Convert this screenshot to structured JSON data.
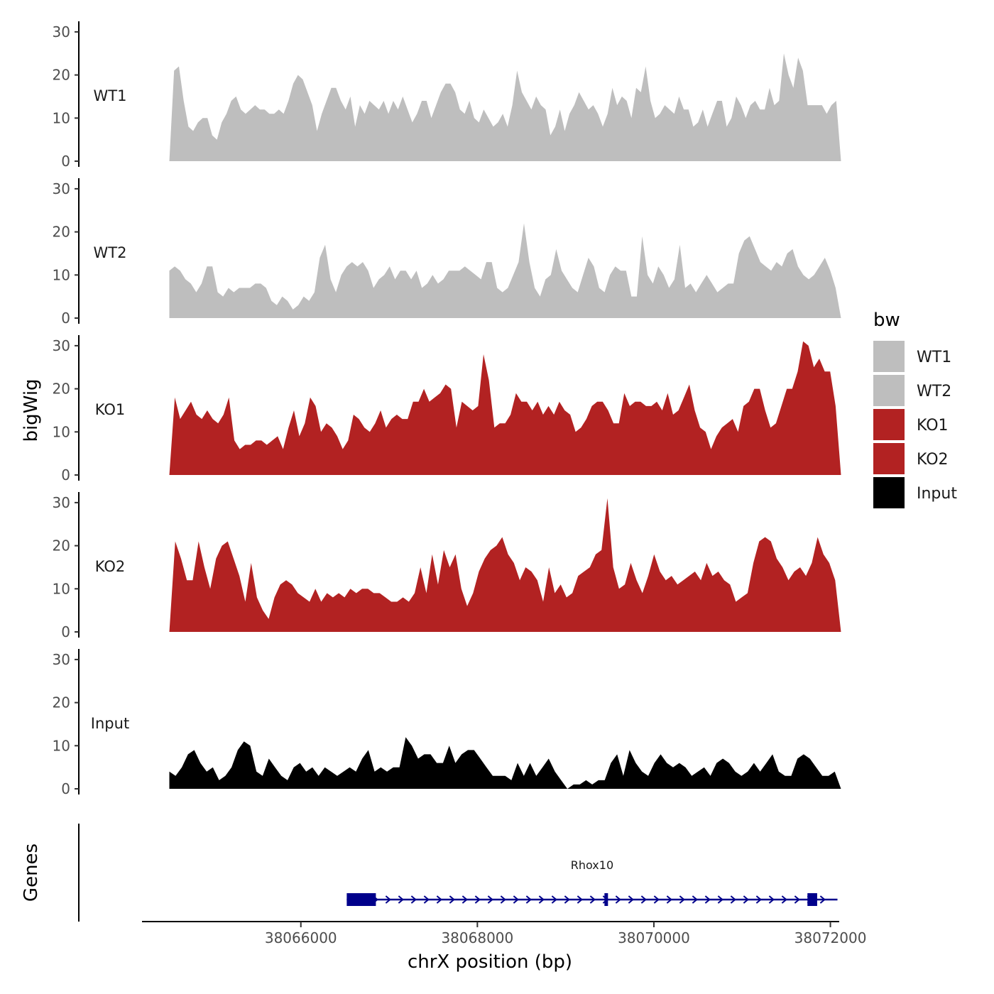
{
  "chart_data": {
    "type": "area",
    "y_axis_title": "bigWig",
    "genes_axis_title": "Genes",
    "x_axis_title": "chrX position (bp)",
    "xlim": [
      38064200,
      38072100
    ],
    "data_xrange": [
      38064510,
      38072120
    ],
    "x_ticks": [
      {
        "value": 38066000,
        "label": "38066000"
      },
      {
        "value": 38068000,
        "label": "38068000"
      },
      {
        "value": 38070000,
        "label": "38070000"
      },
      {
        "value": 38072000,
        "label": "38072000"
      }
    ],
    "ylim": [
      0,
      31
    ],
    "y_ticks": [
      {
        "value": 0,
        "label": "0"
      },
      {
        "value": 10,
        "label": "10"
      },
      {
        "value": 20,
        "label": "20"
      },
      {
        "value": 30,
        "label": "30"
      }
    ],
    "legend": {
      "title": "bw",
      "entries": [
        {
          "label": "WT1",
          "color": "#bebebe"
        },
        {
          "label": "WT2",
          "color": "#bebebe"
        },
        {
          "label": "KO1",
          "color": "#b22222"
        },
        {
          "label": "KO2",
          "color": "#b22222"
        },
        {
          "label": "Input",
          "color": "#000000"
        }
      ]
    },
    "series": [
      {
        "name": "WT1",
        "color": "#bebebe",
        "values": [
          0,
          21,
          22,
          14,
          8,
          7,
          9,
          10,
          10,
          6,
          5,
          9,
          11,
          14,
          15,
          12,
          11,
          12,
          13,
          12,
          12,
          11,
          11,
          12,
          11,
          14,
          18,
          20,
          19,
          16,
          13,
          7,
          11,
          14,
          17,
          17,
          14,
          12,
          15,
          8,
          13,
          11,
          14,
          13,
          12,
          14,
          11,
          14,
          12,
          15,
          12,
          9,
          11,
          14,
          14,
          10,
          13,
          16,
          18,
          18,
          16,
          12,
          11,
          14,
          10,
          9,
          12,
          10,
          8,
          9,
          11,
          8,
          13,
          21,
          16,
          14,
          12,
          15,
          13,
          12,
          6,
          8,
          12,
          7,
          11,
          13,
          16,
          14,
          12,
          13,
          11,
          8,
          11,
          17,
          13,
          15,
          14,
          10,
          17,
          16,
          22,
          14,
          10,
          11,
          13,
          12,
          11,
          15,
          12,
          12,
          8,
          9,
          12,
          8,
          11,
          14,
          14,
          8,
          10,
          15,
          13,
          10,
          13,
          14,
          12,
          12,
          17,
          13,
          14,
          25,
          20,
          17,
          24,
          21,
          13,
          13,
          13,
          13,
          11,
          13,
          14,
          0
        ]
      },
      {
        "name": "WT2",
        "color": "#bebebe",
        "values": [
          11,
          12,
          11,
          9,
          8,
          6,
          8,
          12,
          12,
          6,
          5,
          7,
          6,
          7,
          7,
          7,
          8,
          8,
          7,
          4,
          3,
          5,
          4,
          2,
          3,
          5,
          4,
          6,
          14,
          17,
          9,
          6,
          10,
          12,
          13,
          12,
          13,
          11,
          7,
          9,
          10,
          12,
          9,
          11,
          11,
          9,
          11,
          7,
          8,
          10,
          8,
          9,
          11,
          11,
          11,
          12,
          11,
          10,
          9,
          13,
          13,
          7,
          6,
          7,
          10,
          13,
          22,
          13,
          7,
          5,
          9,
          10,
          16,
          11,
          9,
          7,
          6,
          10,
          14,
          12,
          7,
          6,
          10,
          12,
          11,
          11,
          5,
          5,
          19,
          10,
          8,
          12,
          10,
          7,
          9,
          17,
          7,
          8,
          6,
          8,
          10,
          8,
          6,
          7,
          8,
          8,
          15,
          18,
          19,
          16,
          13,
          12,
          11,
          13,
          12,
          15,
          16,
          12,
          10,
          9,
          10,
          12,
          14,
          11,
          7,
          0
        ]
      },
      {
        "name": "KO1",
        "color": "#b22222",
        "values": [
          0,
          18,
          13,
          15,
          17,
          14,
          13,
          15,
          13,
          12,
          14,
          18,
          8,
          6,
          7,
          7,
          8,
          8,
          7,
          8,
          9,
          6,
          11,
          15,
          9,
          12,
          18,
          16,
          10,
          12,
          11,
          9,
          6,
          8,
          14,
          13,
          11,
          10,
          12,
          15,
          11,
          13,
          14,
          13,
          13,
          17,
          17,
          20,
          17,
          18,
          19,
          21,
          20,
          11,
          17,
          16,
          15,
          16,
          28,
          22,
          11,
          12,
          12,
          14,
          19,
          17,
          17,
          15,
          17,
          14,
          16,
          14,
          17,
          15,
          14,
          10,
          11,
          13,
          16,
          17,
          17,
          15,
          12,
          12,
          19,
          16,
          17,
          17,
          16,
          16,
          17,
          15,
          19,
          14,
          15,
          18,
          21,
          15,
          11,
          10,
          6,
          9,
          11,
          12,
          13,
          10,
          16,
          17,
          20,
          20,
          15,
          11,
          12,
          16,
          20,
          20,
          24,
          31,
          30,
          25,
          27,
          24,
          24,
          16,
          0
        ]
      },
      {
        "name": "KO2",
        "color": "#b22222",
        "values": [
          0,
          21,
          17,
          12,
          12,
          21,
          15,
          10,
          17,
          20,
          21,
          17,
          13,
          7,
          16,
          8,
          5,
          3,
          8,
          11,
          12,
          11,
          9,
          8,
          7,
          10,
          7,
          9,
          8,
          9,
          8,
          10,
          9,
          10,
          10,
          9,
          9,
          8,
          7,
          7,
          8,
          7,
          9,
          15,
          9,
          18,
          11,
          19,
          15,
          18,
          10,
          6,
          9,
          14,
          17,
          19,
          20,
          22,
          18,
          16,
          12,
          15,
          14,
          12,
          7,
          15,
          9,
          11,
          8,
          9,
          13,
          14,
          15,
          18,
          19,
          31,
          15,
          10,
          11,
          16,
          12,
          9,
          13,
          18,
          14,
          12,
          13,
          11,
          12,
          13,
          14,
          12,
          16,
          13,
          14,
          12,
          11,
          7,
          8,
          9,
          16,
          21,
          22,
          21,
          17,
          15,
          12,
          14,
          15,
          13,
          16,
          22,
          18,
          16,
          12,
          0
        ]
      },
      {
        "name": "Input",
        "color": "#000000",
        "values": [
          4,
          3,
          5,
          8,
          9,
          6,
          4,
          5,
          2,
          3,
          5,
          9,
          11,
          10,
          4,
          3,
          7,
          5,
          3,
          2,
          5,
          6,
          4,
          5,
          3,
          5,
          4,
          3,
          4,
          5,
          4,
          7,
          9,
          4,
          5,
          4,
          5,
          5,
          12,
          10,
          7,
          8,
          8,
          6,
          6,
          10,
          6,
          8,
          9,
          9,
          7,
          5,
          3,
          3,
          3,
          2,
          6,
          3,
          6,
          3,
          5,
          7,
          4,
          2,
          0,
          1,
          1,
          2,
          1,
          2,
          2,
          6,
          8,
          3,
          9,
          6,
          4,
          3,
          6,
          8,
          6,
          5,
          6,
          5,
          3,
          4,
          5,
          3,
          6,
          7,
          6,
          4,
          3,
          4,
          6,
          4,
          6,
          8,
          4,
          3,
          3,
          7,
          8,
          7,
          5,
          3,
          3,
          4,
          0
        ]
      }
    ],
    "genes": [
      {
        "name": "Rhox10",
        "strand": "+",
        "start": 38066520,
        "end": 38072080,
        "exons": [
          {
            "start": 38066520,
            "end": 38066850
          },
          {
            "start": 38069440,
            "end": 38069480
          },
          {
            "start": 38071740,
            "end": 38071850
          }
        ],
        "color": "#00008b"
      }
    ]
  }
}
